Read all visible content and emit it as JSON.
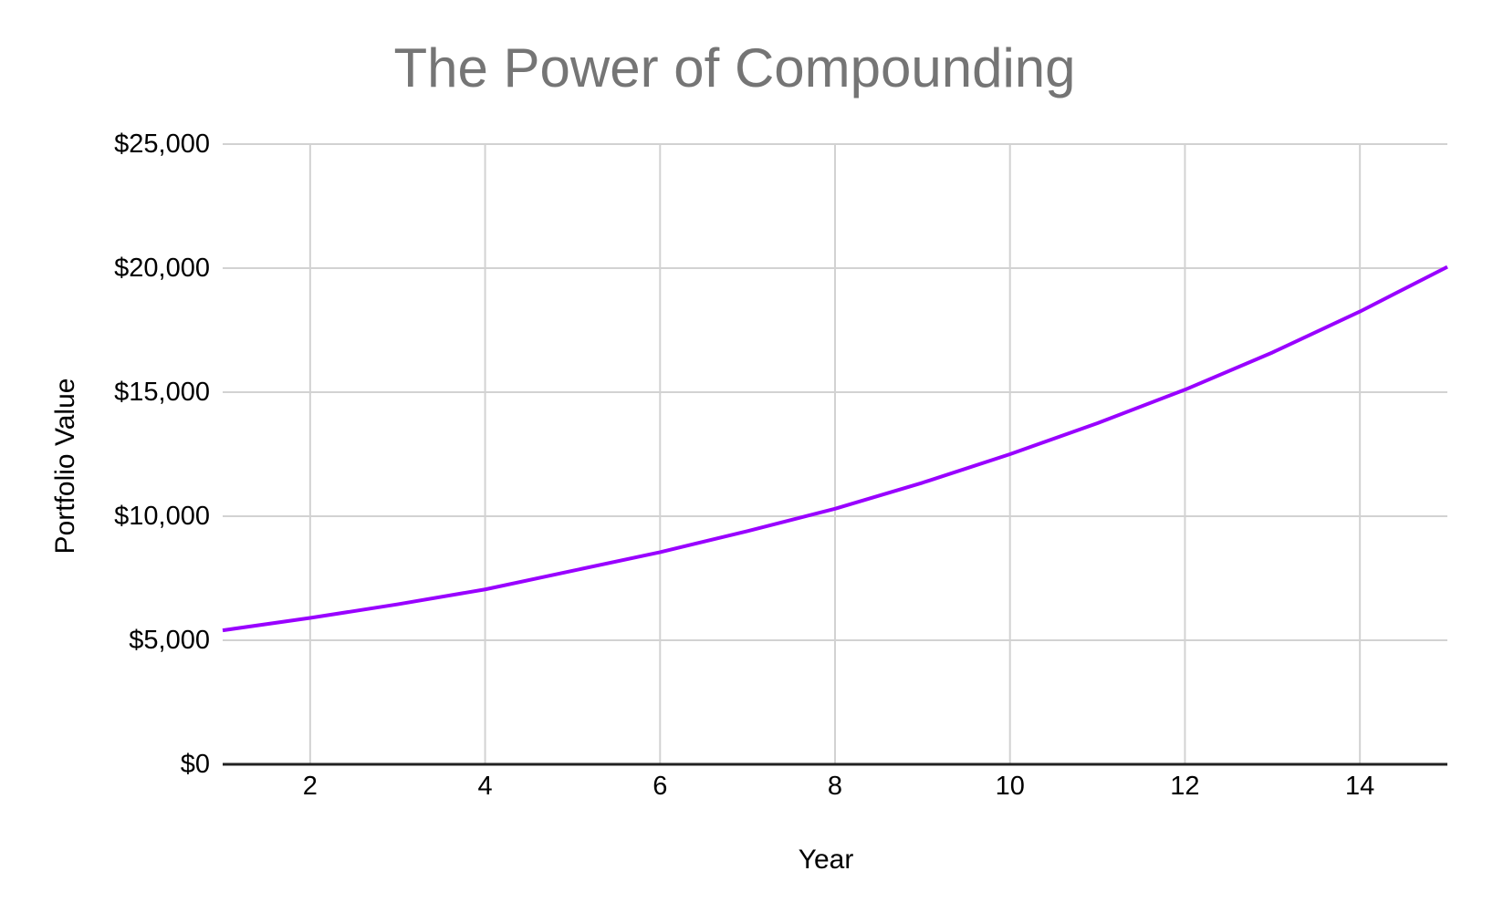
{
  "chart_data": {
    "type": "line",
    "title": "The Power of Compounding",
    "xlabel": "Year",
    "ylabel": "Portfolio Value",
    "x": [
      1,
      2,
      3,
      4,
      5,
      6,
      7,
      8,
      9,
      10,
      11,
      12,
      13,
      14,
      15
    ],
    "series": [
      {
        "name": "Portfolio Value",
        "values": [
          5400,
          5900,
          6450,
          7050,
          7800,
          8550,
          9400,
          10300,
          11350,
          12500,
          13750,
          15100,
          16600,
          18250,
          20050
        ]
      }
    ],
    "xlim": [
      1,
      15
    ],
    "ylim": [
      0,
      25000
    ],
    "x_ticks": [
      2,
      4,
      6,
      8,
      10,
      12,
      14
    ],
    "y_ticks": [
      0,
      5000,
      10000,
      15000,
      20000,
      25000
    ],
    "y_tick_labels": [
      "$0",
      "$5,000",
      "$10,000",
      "$15,000",
      "$20,000",
      "$25,000"
    ],
    "grid": true,
    "legend_position": "none",
    "colors": {
      "line": "#9900ff",
      "title": "#757575",
      "axis_line": "#212121",
      "gridline": "#d2d2d2",
      "tick_text": "#000000",
      "axis_title_text": "#000000",
      "background": "#ffffff"
    }
  }
}
